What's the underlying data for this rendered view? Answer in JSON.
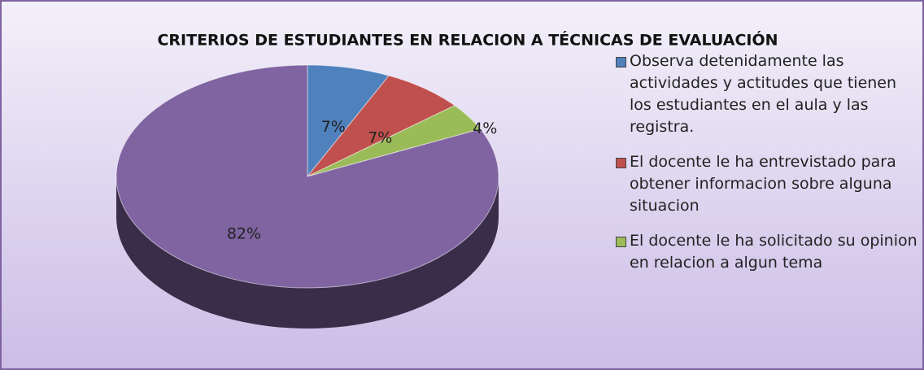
{
  "chart_data": {
    "type": "pie",
    "title": "CRITERIOS DE ESTUDIANTES EN RELACION A TÉCNICAS DE EVALUACIÓN",
    "categories": [
      "Observa detenidamente las actividades y actitudes que tienen los estudiantes en el aula y las registra.",
      "El docente le ha entrevistado para obtener informacion sobre alguna situacion",
      "El docente le ha solicitado su opinion en relacion a algun tema",
      null
    ],
    "values": [
      7,
      7,
      4,
      82
    ],
    "value_labels": [
      "7%",
      "7%",
      "4%",
      "82%"
    ],
    "colors": [
      "#4f81bd",
      "#c0504d",
      "#9bbb59",
      "#8064a2"
    ],
    "legend": "right"
  }
}
